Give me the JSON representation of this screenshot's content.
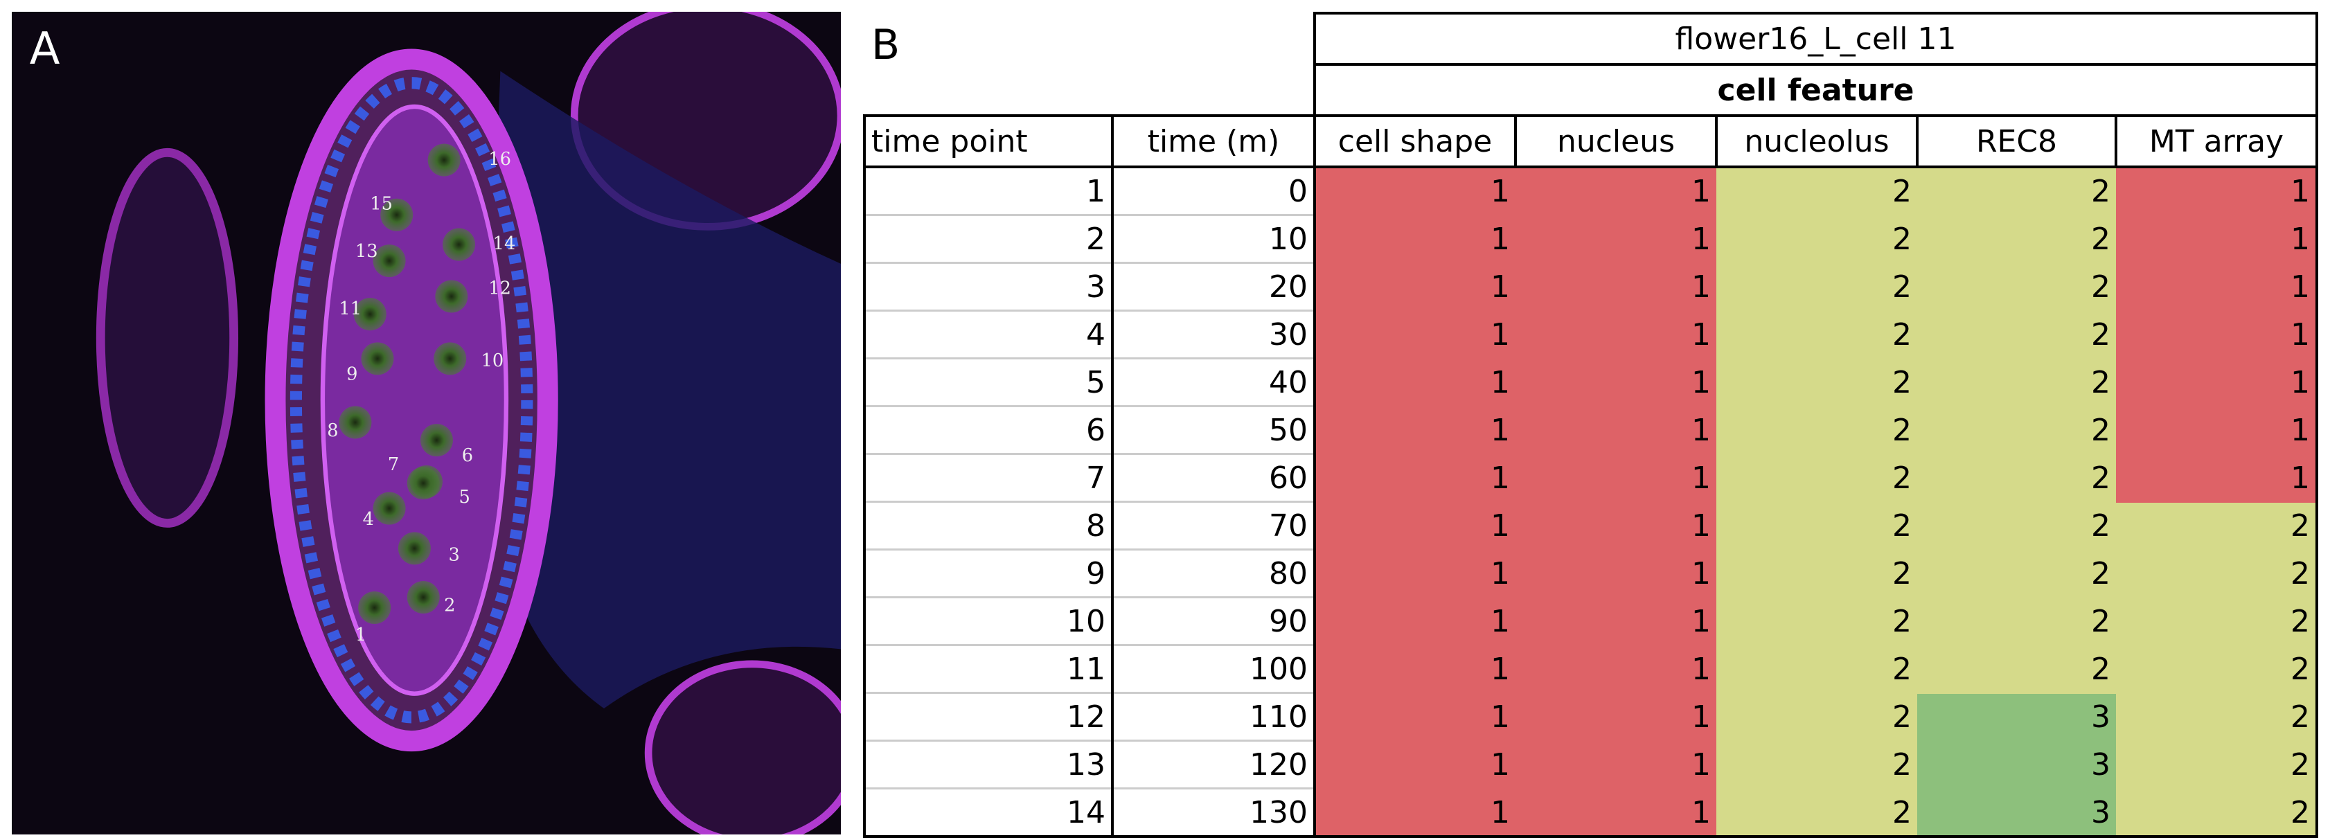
{
  "panel_a": {
    "label": "A",
    "cell_labels": [
      1,
      2,
      3,
      4,
      5,
      6,
      7,
      8,
      9,
      10,
      11,
      12,
      13,
      14,
      15,
      16
    ]
  },
  "panel_b": {
    "label": "B",
    "title": "flower16_L_cell 11",
    "group_header": "cell feature",
    "columns": [
      "time point",
      "time (m)",
      "cell shape",
      "nucleus",
      "nucleolus",
      "REC8",
      "MT array"
    ],
    "rows": [
      [
        1,
        0,
        1,
        1,
        2,
        2,
        1
      ],
      [
        2,
        10,
        1,
        1,
        2,
        2,
        1
      ],
      [
        3,
        20,
        1,
        1,
        2,
        2,
        1
      ],
      [
        4,
        30,
        1,
        1,
        2,
        2,
        1
      ],
      [
        5,
        40,
        1,
        1,
        2,
        2,
        1
      ],
      [
        6,
        50,
        1,
        1,
        2,
        2,
        1
      ],
      [
        7,
        60,
        1,
        1,
        2,
        2,
        1
      ],
      [
        8,
        70,
        1,
        1,
        2,
        2,
        2
      ],
      [
        9,
        80,
        1,
        1,
        2,
        2,
        2
      ],
      [
        10,
        90,
        1,
        1,
        2,
        2,
        2
      ],
      [
        11,
        100,
        1,
        1,
        2,
        2,
        2
      ],
      [
        12,
        110,
        1,
        1,
        2,
        3,
        2
      ],
      [
        13,
        120,
        1,
        1,
        2,
        3,
        2
      ],
      [
        14,
        130,
        1,
        1,
        2,
        3,
        2
      ]
    ]
  }
}
